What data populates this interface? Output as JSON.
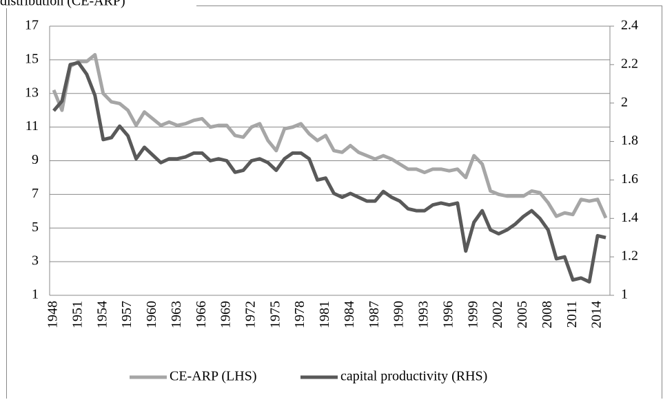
{
  "chart_data": {
    "type": "line",
    "title": "distribution (CE-ARP)",
    "categories": [
      "1948",
      null,
      null,
      "1951",
      null,
      null,
      "1954",
      null,
      null,
      "1957",
      null,
      null,
      "1960",
      null,
      null,
      "1963",
      null,
      null,
      "1966",
      null,
      null,
      "1969",
      null,
      null,
      "1972",
      null,
      null,
      "1975",
      null,
      null,
      "1978",
      null,
      null,
      "1981",
      null,
      null,
      "1984",
      null,
      null,
      "1987",
      null,
      null,
      "1990",
      null,
      null,
      "1993",
      null,
      null,
      "1996",
      null,
      null,
      "1999",
      null,
      null,
      "2002",
      null,
      null,
      "2005",
      null,
      null,
      "2008",
      null,
      null,
      "2011",
      null,
      null,
      "2014",
      null
    ],
    "series": [
      {
        "name": "CE-ARP (LHS)",
        "color": "#a6a6a6",
        "values": [
          13.2,
          12.0,
          14.6,
          14.9,
          14.9,
          15.3,
          13.0,
          12.5,
          12.4,
          12.0,
          11.1,
          11.9,
          11.5,
          11.1,
          11.3,
          11.1,
          11.2,
          11.4,
          11.5,
          11.0,
          11.1,
          11.1,
          10.5,
          10.4,
          11.0,
          11.2,
          10.2,
          9.6,
          10.9,
          11.0,
          11.2,
          10.6,
          10.2,
          10.5,
          9.6,
          9.5,
          9.9,
          9.5,
          9.3,
          9.1,
          9.3,
          9.1,
          8.8,
          8.5,
          8.5,
          8.3,
          8.5,
          8.5,
          8.4,
          8.5,
          8.0,
          9.3,
          8.8,
          7.2,
          7.0,
          6.9,
          6.9,
          6.9,
          7.2,
          7.1,
          6.5,
          5.7,
          5.9,
          5.8,
          6.7,
          6.6,
          6.7,
          5.6
        ]
      },
      {
        "name": "capital productivity (RHS)",
        "color": "#595959",
        "axis": "y2",
        "values": [
          1.96,
          2.01,
          2.2,
          2.21,
          2.15,
          2.04,
          1.81,
          1.82,
          1.88,
          1.83,
          1.71,
          1.77,
          1.73,
          1.69,
          1.71,
          1.71,
          1.72,
          1.74,
          1.74,
          1.7,
          1.71,
          1.7,
          1.64,
          1.65,
          1.7,
          1.71,
          1.69,
          1.65,
          1.71,
          1.74,
          1.74,
          1.71,
          1.6,
          1.61,
          1.53,
          1.51,
          1.53,
          1.51,
          1.49,
          1.49,
          1.54,
          1.51,
          1.49,
          1.45,
          1.44,
          1.44,
          1.47,
          1.48,
          1.47,
          1.48,
          1.23,
          1.38,
          1.44,
          1.34,
          1.32,
          1.34,
          1.37,
          1.41,
          1.44,
          1.4,
          1.34,
          1.19,
          1.2,
          1.08,
          1.09,
          1.07,
          1.31,
          1.3
        ]
      }
    ],
    "ylim": [
      1,
      17
    ],
    "yticks": [
      1,
      3,
      5,
      7,
      9,
      11,
      13,
      15,
      17
    ],
    "y2lim": [
      1,
      2.4
    ],
    "y2ticks": [
      1,
      1.2,
      1.4,
      1.6,
      1.8,
      2,
      2.2,
      2.4
    ],
    "grid": true,
    "legend": "bottom"
  }
}
